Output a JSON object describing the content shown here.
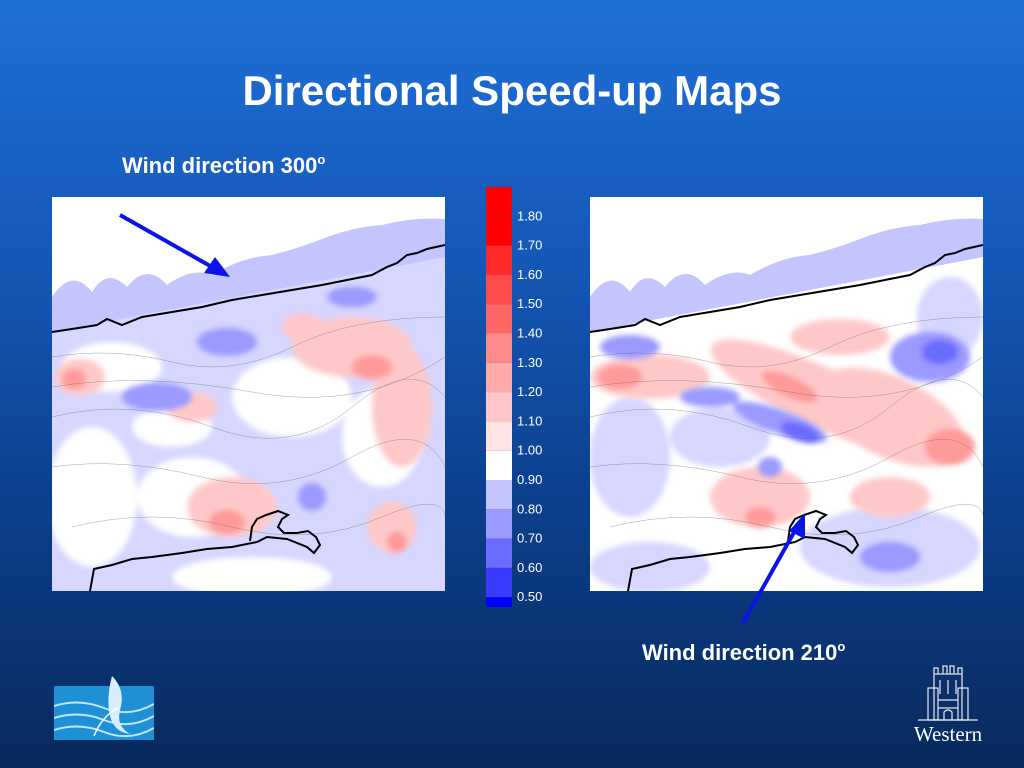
{
  "slide": {
    "title": "Directional Speed-up Maps",
    "left_label": {
      "text": "Wind direction 300",
      "superscript": "o"
    },
    "right_label": {
      "text": "Wind direction 210",
      "superscript": "o"
    }
  },
  "colorbar": {
    "levels": [
      {
        "label": "1.80",
        "color": "#ff0000"
      },
      {
        "label": "1.70",
        "color": "#ff2a2a"
      },
      {
        "label": "1.60",
        "color": "#ff4b4b"
      },
      {
        "label": "1.50",
        "color": "#ff6666"
      },
      {
        "label": "1.40",
        "color": "#ff8a8a"
      },
      {
        "label": "1.30",
        "color": "#ffaaaa"
      },
      {
        "label": "1.20",
        "color": "#ffc8c8"
      },
      {
        "label": "1.10",
        "color": "#ffe2e2"
      },
      {
        "label": "1.00",
        "color": "#ffffff"
      },
      {
        "label": "0.90",
        "color": "#c4c4ff"
      },
      {
        "label": "0.80",
        "color": "#9a9aff"
      },
      {
        "label": "0.70",
        "color": "#6b6bff"
      },
      {
        "label": "0.60",
        "color": "#3a3aff"
      },
      {
        "label": "0.50",
        "color": "#0000ff"
      }
    ],
    "top_color": "#ff0000"
  },
  "logos": {
    "right_logo_text": "Western",
    "left_logo_icon": "wind-wave-logo-icon",
    "right_logo_icon": "university-tower-icon"
  },
  "colors": {
    "arrow": "#0a14e6",
    "map_light_blue": "#c4c4ff",
    "map_blue": "#9a9aff",
    "map_pink": "#ffc8c8",
    "map_red": "#ff9a9a"
  }
}
